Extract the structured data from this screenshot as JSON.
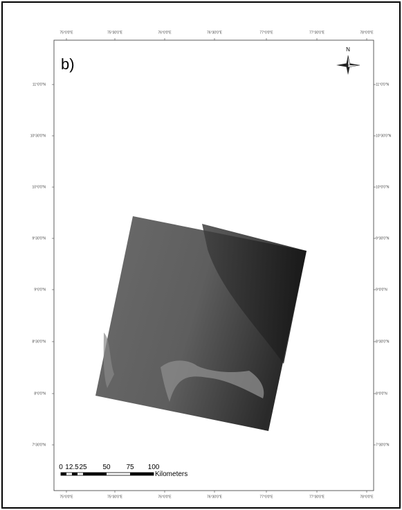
{
  "panel_label": "b)",
  "north_label": "N",
  "lon_labels": [
    "75°0'0\"E",
    "75°30'0\"E",
    "76°0'0\"E",
    "76°30'0\"E",
    "77°0'0\"E",
    "77°30'0\"E",
    "78°0'0\"E"
  ],
  "lat_labels": [
    "11°0'0\"N",
    "10°30'0\"N",
    "10°0'0\"N",
    "9°30'0\"N",
    "9°0'0\"N",
    "8°30'0\"N",
    "8°0'0\"N",
    "7°30'0\"N"
  ],
  "scale_bar": {
    "ticks": [
      "0",
      "12.5",
      "25",
      "50",
      "75",
      "100"
    ],
    "unit": "Kilometers"
  }
}
